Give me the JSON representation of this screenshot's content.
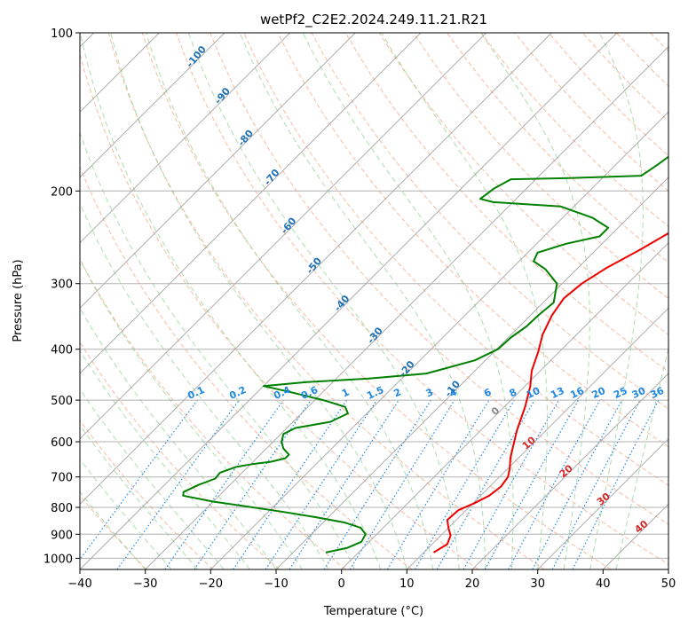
{
  "chart_data": {
    "type": "line",
    "title": "wetPf2_C2E2.2024.249.11.21.R21",
    "xlabel": "Temperature (°C)",
    "ylabel": "Pressure (hPa)",
    "xlim": [
      -40,
      50
    ],
    "ylim": [
      1050,
      100
    ],
    "y_scale": "log",
    "grid": true,
    "xticks": [
      "−40",
      "−30",
      "−20",
      "−10",
      "0",
      "10",
      "20",
      "30",
      "40",
      "50"
    ],
    "yticks": [
      {
        "p": 100,
        "label": "100"
      },
      {
        "p": 200,
        "label": "200"
      },
      {
        "p": 300,
        "label": "300"
      },
      {
        "p": 400,
        "label": "400"
      },
      {
        "p": 500,
        "label": "500"
      },
      {
        "p": 600,
        "label": "600"
      },
      {
        "p": 700,
        "label": "700"
      },
      {
        "p": 800,
        "label": "800"
      },
      {
        "p": 900,
        "label": "900"
      },
      {
        "p": 1000,
        "label": "1000"
      }
    ],
    "colors": {
      "temperature": "#ee0000",
      "dewpoint": "#008000",
      "isotherm": "#999999",
      "dry_adiabat": "#f4a582",
      "moist_adiabat": "#8ccf8c",
      "mixing_ratio": "#1e88e5",
      "dry_adiabat_label": "#2171b5",
      "moist_label": "#d62728",
      "isotherm_label": "#888888"
    },
    "series": [
      {
        "key": "temperature",
        "points": [
          [
            11.5,
            975
          ],
          [
            12.3,
            940
          ],
          [
            11.5,
            905
          ],
          [
            10,
            875
          ],
          [
            8.6,
            845
          ],
          [
            8.8,
            810
          ],
          [
            10.2,
            785
          ],
          [
            11.3,
            760
          ],
          [
            11.7,
            730
          ],
          [
            11.3,
            700
          ],
          [
            10.3,
            675
          ],
          [
            8.8,
            645
          ],
          [
            7.3,
            610
          ],
          [
            5.5,
            570
          ],
          [
            3.2,
            515
          ],
          [
            0.8,
            470
          ],
          [
            -1.3,
            440
          ],
          [
            -3.2,
            405
          ],
          [
            -5.2,
            375
          ],
          [
            -6.7,
            345
          ],
          [
            -7.5,
            320
          ],
          [
            -7,
            300
          ],
          [
            -5.6,
            280
          ],
          [
            -3.4,
            260
          ],
          [
            -1.4,
            240
          ],
          [
            1,
            222
          ],
          [
            3.6,
            207
          ],
          [
            5.6,
            195
          ],
          [
            7.2,
            180
          ],
          [
            8,
            168
          ],
          [
            8.1,
            158
          ],
          [
            7.3,
            148
          ],
          [
            6.2,
            140
          ],
          [
            5.8,
            133
          ],
          [
            6.9,
            126
          ],
          [
            8.4,
            120
          ],
          [
            10.8,
            115
          ],
          [
            12.8,
            111
          ],
          [
            13.9,
            106
          ],
          [
            14.5,
            101
          ]
        ]
      },
      {
        "key": "dewpoint",
        "points": [
          [
            -5,
            975
          ],
          [
            -2.4,
            955
          ],
          [
            -1.2,
            930
          ],
          [
            -1.7,
            900
          ],
          [
            -3.4,
            875
          ],
          [
            -6.7,
            855
          ],
          [
            -12,
            835
          ],
          [
            -18,
            815
          ],
          [
            -24,
            797
          ],
          [
            -30,
            780
          ],
          [
            -35.5,
            760
          ],
          [
            -36,
            748
          ],
          [
            -34.8,
            725
          ],
          [
            -33.2,
            705
          ],
          [
            -33.4,
            687
          ],
          [
            -31.8,
            670
          ],
          [
            -29.8,
            662
          ],
          [
            -27.3,
            655
          ],
          [
            -25.6,
            645
          ],
          [
            -25.6,
            635
          ],
          [
            -27.4,
            618
          ],
          [
            -28.7,
            600
          ],
          [
            -29.6,
            580
          ],
          [
            -28.7,
            565
          ],
          [
            -24.3,
            550
          ],
          [
            -22.9,
            530
          ],
          [
            -24.3,
            515
          ],
          [
            -28.7,
            500
          ],
          [
            -35.2,
            482
          ],
          [
            -40,
            470
          ],
          [
            -34,
            462
          ],
          [
            -25,
            455
          ],
          [
            -17,
            445
          ],
          [
            -11.6,
            420
          ],
          [
            -9.8,
            400
          ],
          [
            -9.6,
            380
          ],
          [
            -8.9,
            362
          ],
          [
            -8.8,
            345
          ],
          [
            -8.4,
            326
          ],
          [
            -10.8,
            300
          ],
          [
            -14.7,
            282
          ],
          [
            -17.8,
            272
          ],
          [
            -18.5,
            262
          ],
          [
            -15.5,
            252
          ],
          [
            -11.5,
            244
          ],
          [
            -11.5,
            235
          ],
          [
            -15.4,
            225
          ],
          [
            -22,
            214
          ],
          [
            -33,
            210
          ],
          [
            -35.5,
            207
          ],
          [
            -35,
            198
          ],
          [
            -33.8,
            190
          ],
          [
            -25,
            189
          ],
          [
            -14.4,
            187
          ],
          [
            -13.6,
            178
          ],
          [
            -12.7,
            166
          ],
          [
            -10.4,
            155
          ],
          [
            -7.3,
            148
          ],
          [
            -6.4,
            142
          ],
          [
            -7.8,
            135
          ],
          [
            -10,
            130
          ],
          [
            -11.3,
            125
          ],
          [
            -10.3,
            120
          ],
          [
            -7.6,
            117
          ],
          [
            -5.2,
            113
          ],
          [
            -3.4,
            110
          ],
          [
            -2.4,
            106
          ],
          [
            -3,
            102
          ],
          [
            -3.1,
            100
          ]
        ]
      }
    ],
    "isotherm_labels": [
      "0"
    ],
    "dry_adiabat_labels": [
      "-100",
      "-90",
      "-80",
      "-70",
      "-60",
      "-50",
      "-40",
      "-30",
      "-20",
      "-10"
    ],
    "moist_adiabat_labels": [
      "10",
      "20",
      "30",
      "40"
    ],
    "mixing_ratio_labels": [
      "0.1",
      "0.2",
      "0.4",
      "0.6",
      "1",
      "1.5",
      "2",
      "3",
      "4",
      "6",
      "8",
      "10",
      "13",
      "16",
      "20",
      "25",
      "30",
      "36"
    ]
  }
}
